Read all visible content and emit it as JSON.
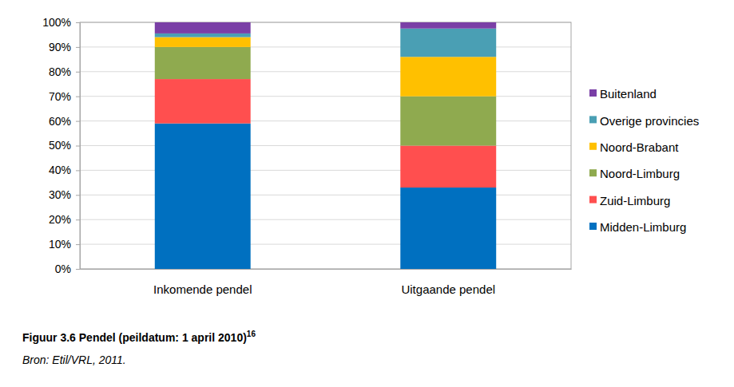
{
  "chart_data": {
    "type": "bar",
    "stacked": true,
    "grid": true,
    "legend": "right",
    "title": "Figuur 3.6 Pendel (peildatum: 1 april 2010)",
    "title_note": "16",
    "source": "Bron: Etil/VRL, 2011.",
    "categories": [
      "Inkomende pendel",
      "Uitgaande pendel"
    ],
    "series": [
      {
        "name": "Midden-Limburg",
        "color": "#0070c0",
        "values": [
          59,
          33
        ]
      },
      {
        "name": "Zuid-Limburg",
        "color": "#ff4f4f",
        "values": [
          18,
          17
        ]
      },
      {
        "name": "Noord-Limburg",
        "color": "#8faa4f",
        "values": [
          13,
          20
        ]
      },
      {
        "name": "Noord-Brabant",
        "color": "#ffc000",
        "values": [
          4,
          16
        ]
      },
      {
        "name": "Overige provincies",
        "color": "#4a9fb4",
        "values": [
          1.5,
          11.5
        ]
      },
      {
        "name": "Buitenland",
        "color": "#7a3fa6",
        "values": [
          4.5,
          2.5
        ]
      }
    ],
    "ylim": [
      0,
      100
    ],
    "yticks": [
      {
        "value": 0,
        "label": "0%"
      },
      {
        "value": 10,
        "label": "10%"
      },
      {
        "value": 20,
        "label": "20%"
      },
      {
        "value": 30,
        "label": "30%"
      },
      {
        "value": 40,
        "label": "40%"
      },
      {
        "value": 50,
        "label": "50%"
      },
      {
        "value": 60,
        "label": "60%"
      },
      {
        "value": 70,
        "label": "70%"
      },
      {
        "value": 80,
        "label": "80%"
      },
      {
        "value": 90,
        "label": "90%"
      },
      {
        "value": 100,
        "label": "100%"
      }
    ]
  }
}
